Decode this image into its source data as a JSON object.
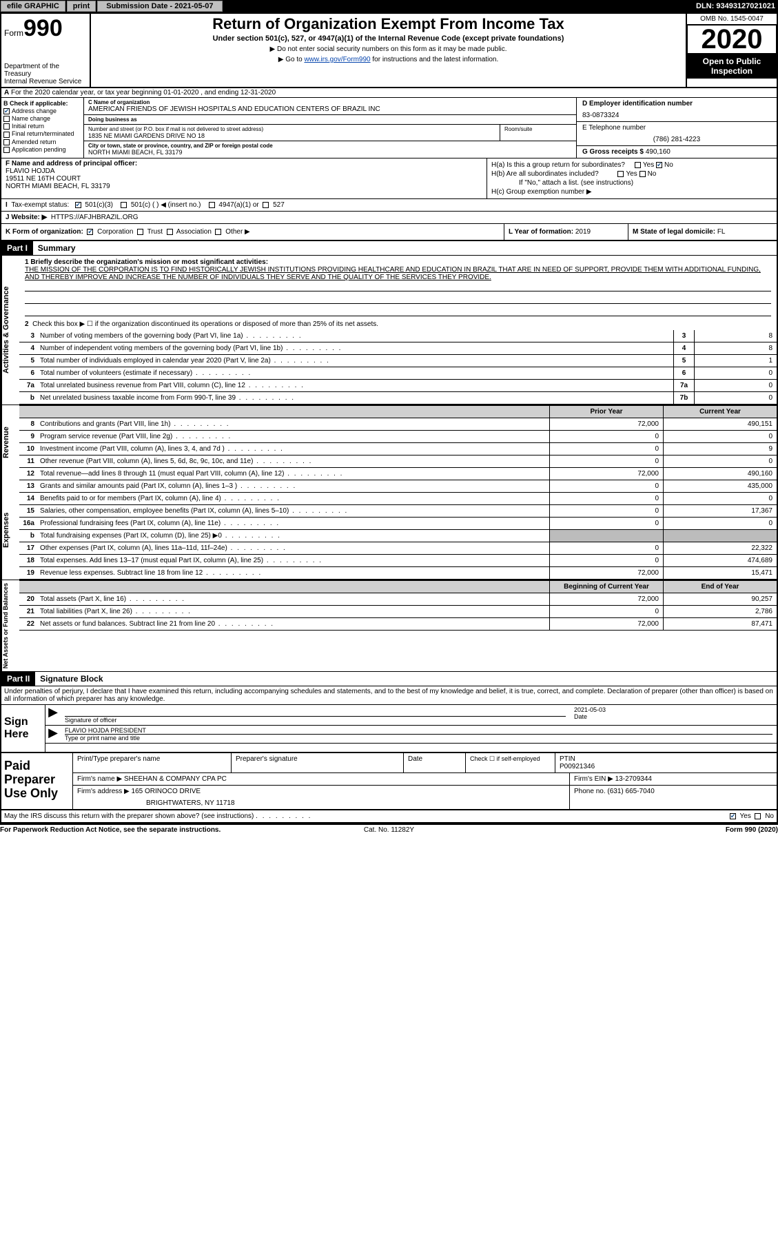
{
  "top": {
    "efile": "efile GRAPHIC",
    "print": "print",
    "sub_label": "Submission Date - 2021-05-07",
    "dln": "DLN: 93493127021021"
  },
  "hdr": {
    "form": "Form",
    "n990": "990",
    "dept": "Department of the Treasury\nInternal Revenue Service",
    "title": "Return of Organization Exempt From Income Tax",
    "sub": "Under section 501(c), 527, or 4947(a)(1) of the Internal Revenue Code (except private foundations)",
    "note1": "▶ Do not enter social security numbers on this form as it may be made public.",
    "note2a": "▶ Go to ",
    "note2link": "www.irs.gov/Form990",
    "note2b": " for instructions and the latest information.",
    "omb": "OMB No. 1545-0047",
    "year": "2020",
    "otp": "Open to Public Inspection"
  },
  "a": "For the 2020 calendar year, or tax year beginning 01-01-2020   , and ending 12-31-2020",
  "b": {
    "lbl": "B Check if applicable:",
    "addr_change": "Address change",
    "name_change": "Name change",
    "initial": "Initial return",
    "final": "Final return/terminated",
    "amended": "Amended return",
    "app_pending": "Application pending"
  },
  "c": {
    "name_lbl": "C Name of organization",
    "name": "AMERICAN FRIENDS OF JEWISH HOSPITALS AND EDUCATION CENTERS OF BRAZIL INC",
    "dba_lbl": "Doing business as",
    "dba": "",
    "addr_lbl": "Number and street (or P.O. box if mail is not delivered to street address)",
    "addr": "1835 NE MIAMI GARDENS DRIVE NO 18",
    "suite_lbl": "Room/suite",
    "city_lbl": "City or town, state or province, country, and ZIP or foreign postal code",
    "city": "NORTH MIAMI BEACH, FL  33179"
  },
  "d": {
    "ein_lbl": "D Employer identification number",
    "ein": "83-0873324",
    "tel_lbl": "E Telephone number",
    "tel": "(786) 281-4223",
    "gross_lbl": "G Gross receipts $",
    "gross": "490,160"
  },
  "f": {
    "lbl": "F Name and address of principal officer:",
    "name": "FLAVIO HOJDA",
    "addr1": "19511 NE 16TH COURT",
    "addr2": "NORTH MIAMI BEACH, FL  33179"
  },
  "h": {
    "a": "H(a)  Is this a group return for subordinates?",
    "b": "H(b)  Are all subordinates included?",
    "bnote": "If \"No,\" attach a list. (see instructions)",
    "c": "H(c)  Group exemption number ▶",
    "yes": "Yes",
    "no": "No"
  },
  "i": {
    "lbl": "Tax-exempt status:",
    "o1": "501(c)(3)",
    "o2": "501(c) (  ) ◀ (insert no.)",
    "o3": "4947(a)(1) or",
    "o4": "527"
  },
  "j": {
    "lbl": "J   Website: ▶",
    "val": "HTTPS://AFJHBRAZIL.ORG"
  },
  "k": {
    "lbl": "K Form of organization:",
    "corp": "Corporation",
    "trust": "Trust",
    "assoc": "Association",
    "other": "Other ▶"
  },
  "l": {
    "lbl": "L Year of formation:",
    "val": "2019"
  },
  "m": {
    "lbl": "M State of legal domicile:",
    "val": "FL"
  },
  "part1": {
    "hdr": "Part I",
    "title": "Summary"
  },
  "summary": {
    "l1lbl": "1  Briefly describe the organization's mission or most significant activities:",
    "mission": "THE MISSION OF THE CORPORATION IS TO FIND HISTORICALLY JEWISH INSTITUTIONS PROVIDING HEALTHCARE AND EDUCATION IN BRAZIL THAT ARE IN NEED OF SUPPORT, PROVIDE THEM WITH ADDITIONAL FUNDING, AND THEREBY IMPROVE AND INCREASE THE NUMBER OF INDIVIDUALS THEY SERVE AND THE QUALITY OF THE SERVICES THEY PROVIDE.",
    "l2": "Check this box ▶ ☐  if the organization discontinued its operations or disposed of more than 25% of its net assets.",
    "rows": [
      {
        "n": "3",
        "t": "Number of voting members of the governing body (Part VI, line 1a)",
        "bn": "3",
        "v": "8"
      },
      {
        "n": "4",
        "t": "Number of independent voting members of the governing body (Part VI, line 1b)",
        "bn": "4",
        "v": "8"
      },
      {
        "n": "5",
        "t": "Total number of individuals employed in calendar year 2020 (Part V, line 2a)",
        "bn": "5",
        "v": "1"
      },
      {
        "n": "6",
        "t": "Total number of volunteers (estimate if necessary)",
        "bn": "6",
        "v": "0"
      },
      {
        "n": "7a",
        "t": "Total unrelated business revenue from Part VIII, column (C), line 12",
        "bn": "7a",
        "v": "0"
      },
      {
        "n": "b",
        "t": "Net unrelated business taxable income from Form 990-T, line 39",
        "bn": "7b",
        "v": "0"
      }
    ]
  },
  "tab_ag": "Activities & Governance",
  "tab_rev": "Revenue",
  "tab_exp": "Expenses",
  "tab_na": "Net Assets or Fund Balances",
  "pycur": {
    "py": "Prior Year",
    "cy": "Current Year"
  },
  "rev": [
    {
      "n": "8",
      "t": "Contributions and grants (Part VIII, line 1h)",
      "v1": "72,000",
      "v2": "490,151"
    },
    {
      "n": "9",
      "t": "Program service revenue (Part VIII, line 2g)",
      "v1": "0",
      "v2": "0"
    },
    {
      "n": "10",
      "t": "Investment income (Part VIII, column (A), lines 3, 4, and 7d )",
      "v1": "0",
      "v2": "9"
    },
    {
      "n": "11",
      "t": "Other revenue (Part VIII, column (A), lines 5, 6d, 8c, 9c, 10c, and 11e)",
      "v1": "0",
      "v2": "0"
    },
    {
      "n": "12",
      "t": "Total revenue—add lines 8 through 11 (must equal Part VIII, column (A), line 12)",
      "v1": "72,000",
      "v2": "490,160"
    }
  ],
  "exp": [
    {
      "n": "13",
      "t": "Grants and similar amounts paid (Part IX, column (A), lines 1–3 )",
      "v1": "0",
      "v2": "435,000"
    },
    {
      "n": "14",
      "t": "Benefits paid to or for members (Part IX, column (A), line 4)",
      "v1": "0",
      "v2": "0"
    },
    {
      "n": "15",
      "t": "Salaries, other compensation, employee benefits (Part IX, column (A), lines 5–10)",
      "v1": "0",
      "v2": "17,367"
    },
    {
      "n": "16a",
      "t": "Professional fundraising fees (Part IX, column (A), line 11e)",
      "v1": "0",
      "v2": "0"
    },
    {
      "n": "b",
      "t": "Total fundraising expenses (Part IX, column (D), line 25) ▶0",
      "v1": "",
      "v2": "",
      "grey": true
    },
    {
      "n": "17",
      "t": "Other expenses (Part IX, column (A), lines 11a–11d, 11f–24e)",
      "v1": "0",
      "v2": "22,322"
    },
    {
      "n": "18",
      "t": "Total expenses. Add lines 13–17 (must equal Part IX, column (A), line 25)",
      "v1": "0",
      "v2": "474,689"
    },
    {
      "n": "19",
      "t": "Revenue less expenses. Subtract line 18 from line 12",
      "v1": "72,000",
      "v2": "15,471"
    }
  ],
  "naheaders": {
    "py": "Beginning of Current Year",
    "cy": "End of Year"
  },
  "na": [
    {
      "n": "20",
      "t": "Total assets (Part X, line 16)",
      "v1": "72,000",
      "v2": "90,257"
    },
    {
      "n": "21",
      "t": "Total liabilities (Part X, line 26)",
      "v1": "0",
      "v2": "2,786"
    },
    {
      "n": "22",
      "t": "Net assets or fund balances. Subtract line 21 from line 20",
      "v1": "72,000",
      "v2": "87,471"
    }
  ],
  "part2": {
    "hdr": "Part II",
    "title": "Signature Block"
  },
  "sig": {
    "declare": "Under penalties of perjury, I declare that I have examined this return, including accompanying schedules and statements, and to the best of my knowledge and belief, it is true, correct, and complete. Declaration of preparer (other than officer) is based on all information of which preparer has any knowledge.",
    "signhere": "Sign Here",
    "sig_officer": "Signature of officer",
    "date": "2021-05-03",
    "date_lbl": "Date",
    "name": "FLAVIO HOJDA PRESIDENT",
    "name_lbl": "Type or print name and title"
  },
  "prep": {
    "lbl": "Paid Preparer Use Only",
    "r1": {
      "c1": "Print/Type preparer's name",
      "c2": "Preparer's signature",
      "c3": "Date",
      "c4a": "Check ☐ if self-employed",
      "c5a": "PTIN",
      "c5b": "P00921346"
    },
    "r2": {
      "c1": "Firm's name    ▶",
      "c1v": "SHEEHAN & COMPANY CPA PC",
      "c2": "Firm's EIN ▶",
      "c2v": "13-2709344"
    },
    "r3": {
      "c1": "Firm's address ▶",
      "c1v": "165 ORINOCO DRIVE",
      "c1v2": "BRIGHTWATERS, NY  11718",
      "c2": "Phone no.",
      "c2v": "(631) 665-7040"
    }
  },
  "discuss": {
    "txt": "May the IRS discuss this return with the preparer shown above? (see instructions)",
    "yes": "Yes",
    "no": "No"
  },
  "foot": {
    "l": "For Paperwork Reduction Act Notice, see the separate instructions.",
    "c": "Cat. No. 11282Y",
    "r": "Form 990 (2020)"
  }
}
